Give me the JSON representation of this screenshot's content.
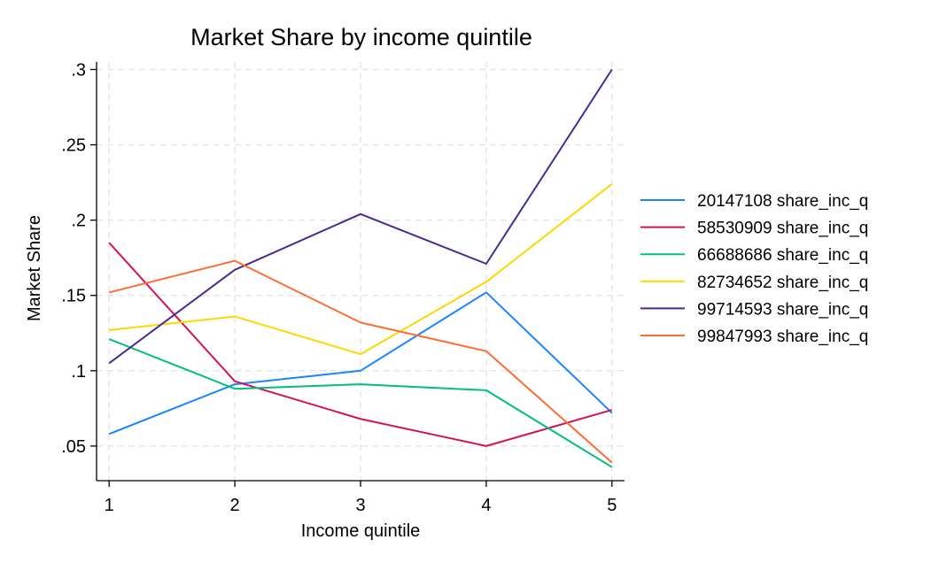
{
  "chart_data": {
    "type": "line",
    "title": "Market Share by income quintile",
    "xlabel": "Income quintile",
    "ylabel": "Market Share",
    "x": [
      1,
      2,
      3,
      4,
      5
    ],
    "xlim": [
      0.9,
      5.1
    ],
    "ylim": [
      0.027,
      0.305
    ],
    "x_ticks": [
      1,
      2,
      3,
      4,
      5
    ],
    "x_tick_labels": [
      "1",
      "2",
      "3",
      "4",
      "5"
    ],
    "y_ticks": [
      0.05,
      0.1,
      0.15,
      0.2,
      0.25,
      0.3
    ],
    "y_tick_labels": [
      ".05",
      ".1",
      ".15",
      ".2",
      ".25",
      ".3"
    ],
    "grid": true,
    "legend_position": "right",
    "series": [
      {
        "name": "20147108 share_inc_q",
        "color": "#1a85ff",
        "values": [
          0.058,
          0.091,
          0.1,
          0.152,
          0.072
        ]
      },
      {
        "name": "58530909 share_inc_q",
        "color": "#d41159",
        "values": [
          0.185,
          0.093,
          0.068,
          0.05,
          0.074
        ]
      },
      {
        "name": "66688686 share_inc_q",
        "color": "#00bf7d",
        "values": [
          0.121,
          0.088,
          0.091,
          0.087,
          0.036
        ]
      },
      {
        "name": "82734652 share_inc_q",
        "color": "#ffd700",
        "values": [
          0.127,
          0.136,
          0.111,
          0.159,
          0.224
        ]
      },
      {
        "name": "99714593 share_inc_q",
        "color": "#4b2991",
        "values": [
          0.105,
          0.167,
          0.204,
          0.171,
          0.3
        ]
      },
      {
        "name": "99847993 share_inc_q",
        "color": "#ff6a33",
        "values": [
          0.152,
          0.173,
          0.132,
          0.113,
          0.039
        ]
      }
    ]
  }
}
